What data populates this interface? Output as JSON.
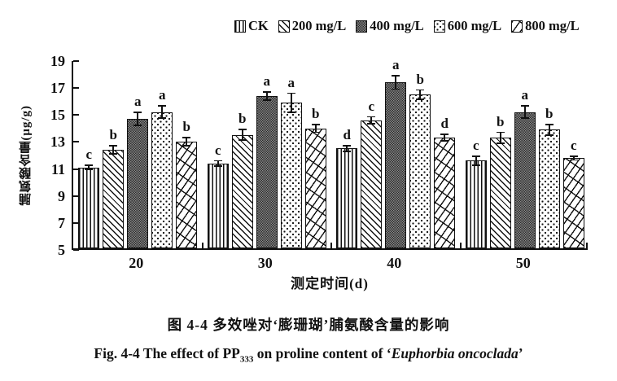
{
  "chart_data": {
    "type": "bar",
    "title": "",
    "xlabel": "测定时间(d)",
    "ylabel": "脯氨酸含量(μg/g)",
    "ylim": [
      5,
      19
    ],
    "yticks": [
      5,
      7,
      9,
      11,
      13,
      15,
      17,
      19
    ],
    "grid": false,
    "legend_position": "top",
    "categories": [
      "20",
      "30",
      "40",
      "50"
    ],
    "series": [
      {
        "name": "CK",
        "pattern": "vertical-stripes",
        "values": [
          11.0,
          11.3,
          12.4,
          11.5
        ],
        "errors": [
          0.2,
          0.25,
          0.25,
          0.4
        ],
        "letters": [
          "c",
          "c",
          "d",
          "c"
        ]
      },
      {
        "name": "200 mg/L",
        "pattern": "diagonal-hatch",
        "values": [
          12.3,
          13.4,
          14.5,
          13.2
        ],
        "errors": [
          0.35,
          0.45,
          0.3,
          0.45
        ],
        "letters": [
          "b",
          "b",
          "c",
          "b"
        ]
      },
      {
        "name": "400 mg/L",
        "pattern": "dark-checker",
        "values": [
          14.6,
          16.3,
          17.3,
          15.1
        ],
        "errors": [
          0.55,
          0.35,
          0.55,
          0.5
        ],
        "letters": [
          "a",
          "a",
          "a",
          "a"
        ]
      },
      {
        "name": "600 mg/L",
        "pattern": "dots",
        "values": [
          15.1,
          15.8,
          16.4,
          13.8
        ],
        "errors": [
          0.5,
          0.75,
          0.4,
          0.45
        ],
        "letters": [
          "a",
          "a",
          "b",
          "b"
        ]
      },
      {
        "name": "800 mg/L",
        "pattern": "weave",
        "values": [
          12.9,
          13.9,
          13.2,
          11.7
        ],
        "errors": [
          0.35,
          0.35,
          0.3,
          0.2
        ],
        "letters": [
          "b",
          "b",
          "d",
          "c"
        ]
      }
    ]
  },
  "captions": {
    "cn": "图 4-4  多效唑对‘膨珊瑚’脯氨酸含量的影响",
    "en": {
      "prefix": "Fig. 4-4 The effect of PP",
      "subscript": "333",
      "middle": " on proline content of ‘",
      "species": "Euphorbia oncoclada",
      "suffix": "’"
    }
  },
  "colors": {
    "ink": "#111111",
    "background": "#ffffff"
  }
}
